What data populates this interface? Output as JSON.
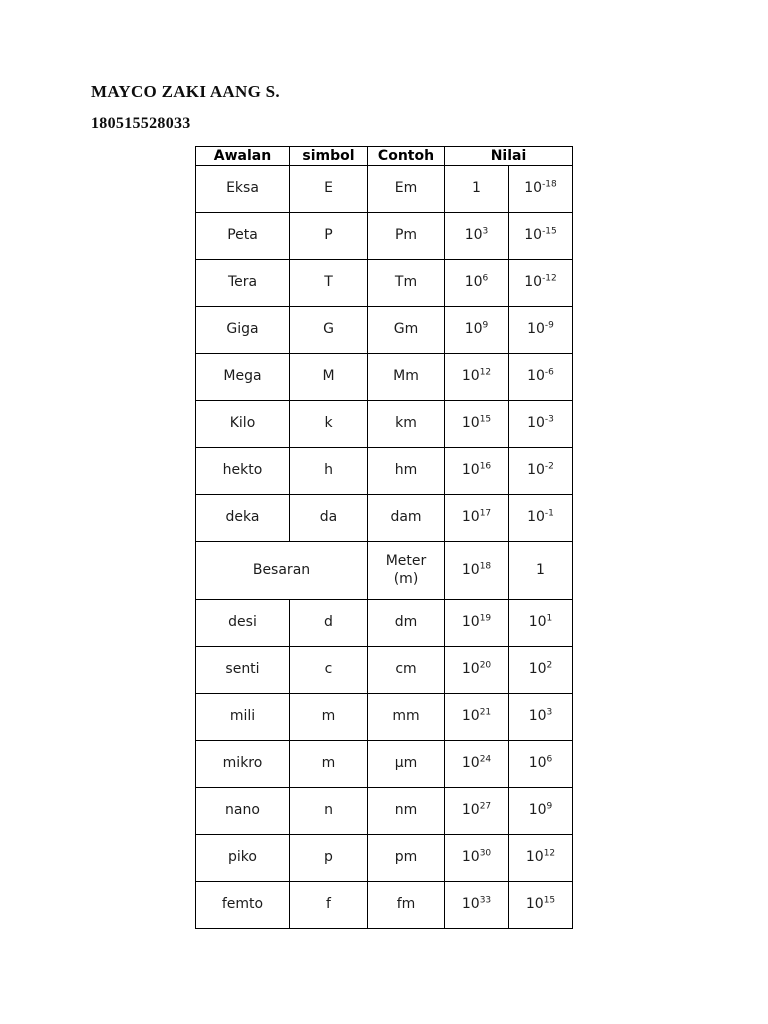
{
  "page": {
    "author_name": "MAYCO ZAKI AANG S.",
    "student_id": "180515528033"
  },
  "table": {
    "headers": {
      "awalan": "Awalan",
      "simbol": "simbol",
      "contoh": "Contoh",
      "nilai": "Nilai"
    },
    "rows": [
      {
        "cells": [
          {
            "t": "Eksa"
          },
          {
            "t": "E"
          },
          {
            "t": "Em"
          },
          {
            "t": "1"
          },
          {
            "b": "10",
            "e": "-18"
          }
        ]
      },
      {
        "cells": [
          {
            "t": "Peta"
          },
          {
            "t": "P"
          },
          {
            "t": "Pm"
          },
          {
            "b": "10",
            "e": "3"
          },
          {
            "b": "10",
            "e": "-15"
          }
        ]
      },
      {
        "cells": [
          {
            "t": "Tera"
          },
          {
            "t": "T"
          },
          {
            "t": "Tm"
          },
          {
            "b": "10",
            "e": "6"
          },
          {
            "b": "10",
            "e": "-12"
          }
        ]
      },
      {
        "cells": [
          {
            "t": "Giga"
          },
          {
            "t": "G"
          },
          {
            "t": "Gm"
          },
          {
            "b": "10",
            "e": "9"
          },
          {
            "b": "10",
            "e": "-9"
          }
        ]
      },
      {
        "cells": [
          {
            "t": "Mega"
          },
          {
            "t": "M"
          },
          {
            "t": "Mm"
          },
          {
            "b": "10",
            "e": "12"
          },
          {
            "b": "10",
            "e": "-6"
          }
        ]
      },
      {
        "cells": [
          {
            "t": "Kilo"
          },
          {
            "t": "k"
          },
          {
            "t": "km"
          },
          {
            "b": "10",
            "e": "15"
          },
          {
            "b": "10",
            "e": "-3"
          }
        ]
      },
      {
        "cells": [
          {
            "t": "hekto"
          },
          {
            "t": "h"
          },
          {
            "t": "hm"
          },
          {
            "b": "10",
            "e": "16"
          },
          {
            "b": "10",
            "e": "-2"
          }
        ]
      },
      {
        "cells": [
          {
            "t": "deka"
          },
          {
            "t": "da"
          },
          {
            "t": "dam"
          },
          {
            "b": "10",
            "e": "17"
          },
          {
            "b": "10",
            "e": "-1"
          }
        ]
      },
      {
        "tall": true,
        "cells": [
          {
            "t": "Besaran",
            "colspan": 2
          },
          {
            "lines": [
              "Meter",
              "(m)"
            ]
          },
          {
            "b": "10",
            "e": "18"
          },
          {
            "t": "1"
          }
        ]
      },
      {
        "cells": [
          {
            "t": "desi"
          },
          {
            "t": "d"
          },
          {
            "t": "dm"
          },
          {
            "b": "10",
            "e": "19"
          },
          {
            "b": "10",
            "e": "1"
          }
        ]
      },
      {
        "cells": [
          {
            "t": "senti"
          },
          {
            "t": "c"
          },
          {
            "t": "cm"
          },
          {
            "b": "10",
            "e": "20"
          },
          {
            "b": "10",
            "e": "2"
          }
        ]
      },
      {
        "cells": [
          {
            "t": "mili"
          },
          {
            "t": "m"
          },
          {
            "t": "mm"
          },
          {
            "b": "10",
            "e": "21"
          },
          {
            "b": "10",
            "e": "3"
          }
        ]
      },
      {
        "cells": [
          {
            "t": "mikro"
          },
          {
            "t": "m"
          },
          {
            "t": "μm"
          },
          {
            "b": "10",
            "e": "24"
          },
          {
            "b": "10",
            "e": "6"
          }
        ]
      },
      {
        "cells": [
          {
            "t": "nano"
          },
          {
            "t": "n"
          },
          {
            "t": "nm"
          },
          {
            "b": "10",
            "e": "27"
          },
          {
            "b": "10",
            "e": "9"
          }
        ]
      },
      {
        "cells": [
          {
            "t": "piko"
          },
          {
            "t": "p"
          },
          {
            "t": "pm"
          },
          {
            "b": "10",
            "e": "30"
          },
          {
            "b": "10",
            "e": "12"
          }
        ]
      },
      {
        "cells": [
          {
            "t": "femto"
          },
          {
            "t": "f"
          },
          {
            "t": "fm"
          },
          {
            "b": "10",
            "e": "33"
          },
          {
            "b": "10",
            "e": "15"
          }
        ]
      }
    ],
    "text_color": "#1c1c1c",
    "border_color": "#000000",
    "background_color": "#ffffff"
  }
}
